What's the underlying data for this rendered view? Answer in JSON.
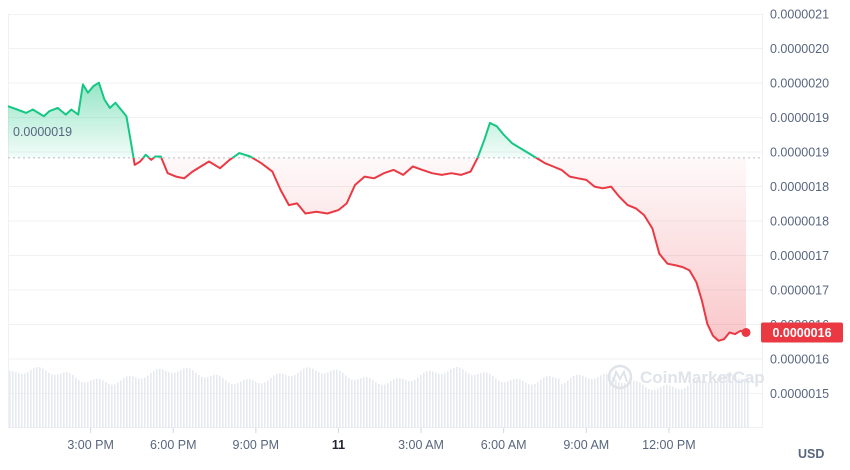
{
  "chart_data": {
    "type": "line",
    "currency": "USD",
    "baseline_label": "0.0000019",
    "current_price_label": "0.0000016",
    "watermark": "CoinMarketCap",
    "y_tick_labels": [
      "0.0000021",
      "0.0000020",
      "0.0000020",
      "0.0000019",
      "0.0000019",
      "0.0000018",
      "0.0000018",
      "0.0000017",
      "0.0000017",
      "0.0000016",
      "0.0000016",
      "0.0000015"
    ],
    "x_tick_labels": [
      "3:00 PM",
      "6:00 PM",
      "9:00 PM",
      "11",
      "3:00 AM",
      "6:00 AM",
      "9:00 AM",
      "12:00 PM"
    ],
    "x_tick_hours": [
      3,
      6,
      9,
      12,
      15,
      18,
      21,
      24
    ],
    "ylim": [
      1.4825e-06,
      2.1e-06
    ],
    "xlim": [
      0,
      26.8
    ],
    "baseline_value": 1.8854e-06,
    "up_color": "#16c784",
    "down_color": "#ea3943",
    "series": [
      {
        "points": [
          [
            0,
            1.9625e-06
          ],
          [
            0.33,
            1.9575e-06
          ],
          [
            0.66,
            1.9525e-06
          ],
          [
            0.9,
            1.9575e-06
          ],
          [
            1.1,
            1.9525e-06
          ],
          [
            1.3,
            1.9475e-06
          ],
          [
            1.5,
            1.955e-06
          ],
          [
            1.8,
            1.96e-06
          ],
          [
            2.1,
            1.95e-06
          ],
          [
            2.3,
            1.9575e-06
          ],
          [
            2.55,
            1.95e-06
          ],
          [
            2.72,
            1.995e-06
          ],
          [
            2.9,
            1.9825e-06
          ],
          [
            3.1,
            1.9925e-06
          ],
          [
            3.3,
            1.9975e-06
          ],
          [
            3.5,
            1.9725e-06
          ],
          [
            3.7,
            1.96e-06
          ],
          [
            3.9,
            1.9675e-06
          ],
          [
            4.1,
            1.9575e-06
          ],
          [
            4.3,
            1.9475e-06
          ],
          [
            4.45,
            1.9125e-06
          ],
          [
            4.6,
            1.875e-06
          ],
          [
            4.8,
            1.88e-06
          ],
          [
            5.0,
            1.89e-06
          ],
          [
            5.2,
            1.8825e-06
          ],
          [
            5.35,
            1.8875e-06
          ],
          [
            5.55,
            1.8875e-06
          ],
          [
            5.8,
            1.8625e-06
          ],
          [
            6.1,
            1.8575e-06
          ],
          [
            6.4,
            1.855e-06
          ],
          [
            6.7,
            1.865e-06
          ],
          [
            7.0,
            1.8725e-06
          ],
          [
            7.3,
            1.88e-06
          ],
          [
            7.7,
            1.87e-06
          ],
          [
            8.05,
            1.8825e-06
          ],
          [
            8.4,
            1.8925e-06
          ],
          [
            8.8,
            1.8875e-06
          ],
          [
            9.2,
            1.8775e-06
          ],
          [
            9.6,
            1.865e-06
          ],
          [
            9.9,
            1.8375e-06
          ],
          [
            10.2,
            1.815e-06
          ],
          [
            10.5,
            1.8175e-06
          ],
          [
            10.8,
            1.8025e-06
          ],
          [
            11.2,
            1.805e-06
          ],
          [
            11.6,
            1.8025e-06
          ],
          [
            12.0,
            1.8075e-06
          ],
          [
            12.3,
            1.8175e-06
          ],
          [
            12.6,
            1.845e-06
          ],
          [
            12.95,
            1.8575e-06
          ],
          [
            13.3,
            1.855e-06
          ],
          [
            13.65,
            1.8625e-06
          ],
          [
            14.0,
            1.8675e-06
          ],
          [
            14.35,
            1.86e-06
          ],
          [
            14.7,
            1.8725e-06
          ],
          [
            15.05,
            1.8675e-06
          ],
          [
            15.4,
            1.8625e-06
          ],
          [
            15.75,
            1.86e-06
          ],
          [
            16.1,
            1.8625e-06
          ],
          [
            16.45,
            1.86e-06
          ],
          [
            16.8,
            1.865e-06
          ],
          [
            17.05,
            1.885e-06
          ],
          [
            17.3,
            1.9125e-06
          ],
          [
            17.5,
            1.9375e-06
          ],
          [
            17.75,
            1.9325e-06
          ],
          [
            18.0,
            1.92e-06
          ],
          [
            18.3,
            1.9075e-06
          ],
          [
            18.6,
            1.9e-06
          ],
          [
            18.9,
            1.8925e-06
          ],
          [
            19.2,
            1.885e-06
          ],
          [
            19.5,
            1.8775e-06
          ],
          [
            19.8,
            1.8725e-06
          ],
          [
            20.1,
            1.8675e-06
          ],
          [
            20.4,
            1.8575e-06
          ],
          [
            20.7,
            1.855e-06
          ],
          [
            21.0,
            1.8525e-06
          ],
          [
            21.3,
            1.8425e-06
          ],
          [
            21.6,
            1.84e-06
          ],
          [
            21.9,
            1.8425e-06
          ],
          [
            22.2,
            1.8275e-06
          ],
          [
            22.5,
            1.815e-06
          ],
          [
            22.8,
            1.81e-06
          ],
          [
            23.1,
            1.8e-06
          ],
          [
            23.4,
            1.78e-06
          ],
          [
            23.65,
            1.7425e-06
          ],
          [
            23.95,
            1.7275e-06
          ],
          [
            24.25,
            1.725e-06
          ],
          [
            24.5,
            1.7225e-06
          ],
          [
            24.75,
            1.7175e-06
          ],
          [
            25.0,
            1.7e-06
          ],
          [
            25.2,
            1.6725e-06
          ],
          [
            25.4,
            1.6375e-06
          ],
          [
            25.6,
            1.62e-06
          ],
          [
            25.8,
            1.6125e-06
          ],
          [
            26.0,
            1.615e-06
          ],
          [
            26.2,
            1.625e-06
          ],
          [
            26.4,
            1.6225e-06
          ],
          [
            26.6,
            1.6275e-06
          ],
          [
            26.8,
            1.625e-06
          ]
        ]
      }
    ]
  }
}
